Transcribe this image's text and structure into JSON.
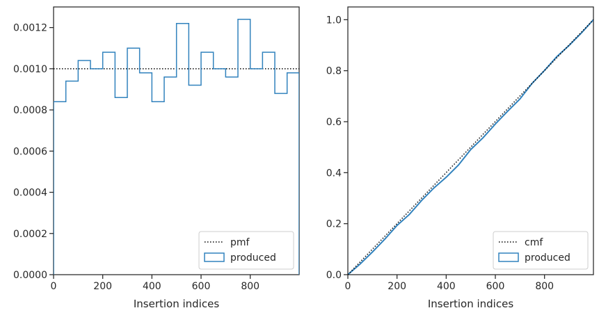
{
  "colors": {
    "produced": "#3182bd",
    "reference": "#000000",
    "frame": "#262626"
  },
  "chart_data": [
    {
      "type": "histogram-step",
      "xlabel": "Insertion indices",
      "ylabel": "",
      "xlim": [
        0,
        999
      ],
      "ylim": [
        0,
        0.0013
      ],
      "xticks": [
        0,
        200,
        400,
        600,
        800
      ],
      "xtick_labels": [
        "0",
        "200",
        "400",
        "600",
        "800"
      ],
      "yticks": [
        0,
        0.0002,
        0.0004,
        0.0006,
        0.0008,
        0.001,
        0.0012
      ],
      "ytick_labels": [
        "0.0000",
        "0.0002",
        "0.0004",
        "0.0006",
        "0.0008",
        "0.0010",
        "0.0012"
      ],
      "grid": false,
      "legend_position": "lower-right",
      "reference": {
        "name": "pmf",
        "style": "dotted",
        "value": 0.001
      },
      "series": [
        {
          "name": "produced",
          "style": "step",
          "bin_edges": [
            0,
            50,
            100,
            150,
            200,
            250,
            300,
            350,
            400,
            450,
            500,
            550,
            600,
            650,
            700,
            750,
            800,
            850,
            900,
            950,
            999
          ],
          "values": [
            0.00084,
            0.00094,
            0.00104,
            0.001,
            0.00108,
            0.00086,
            0.0011,
            0.00098,
            0.00084,
            0.00096,
            0.00122,
            0.00092,
            0.00108,
            0.001,
            0.00096,
            0.00124,
            0.001,
            0.00108,
            0.00088,
            0.00098
          ]
        }
      ]
    },
    {
      "type": "line",
      "xlabel": "Insertion indices",
      "ylabel": "",
      "xlim": [
        0,
        999
      ],
      "ylim": [
        0,
        1.05
      ],
      "xticks": [
        0,
        200,
        400,
        600,
        800
      ],
      "xtick_labels": [
        "0",
        "200",
        "400",
        "600",
        "800"
      ],
      "yticks": [
        0,
        0.2,
        0.4,
        0.6,
        0.8,
        1.0
      ],
      "ytick_labels": [
        "0.0",
        "0.2",
        "0.4",
        "0.6",
        "0.8",
        "1.0"
      ],
      "grid": false,
      "legend_position": "lower-right",
      "reference": {
        "name": "cmf",
        "style": "dotted",
        "x": [
          0,
          999
        ],
        "y": [
          0,
          1.0
        ]
      },
      "series": [
        {
          "name": "produced",
          "style": "line",
          "x": [
            0,
            50,
            100,
            150,
            200,
            250,
            300,
            350,
            400,
            450,
            500,
            550,
            600,
            650,
            700,
            750,
            800,
            850,
            900,
            950,
            999
          ],
          "y": [
            0,
            0.042,
            0.089,
            0.139,
            0.193,
            0.236,
            0.291,
            0.34,
            0.382,
            0.43,
            0.491,
            0.537,
            0.591,
            0.641,
            0.689,
            0.751,
            0.801,
            0.855,
            0.899,
            0.948,
            1.0
          ]
        }
      ]
    }
  ]
}
